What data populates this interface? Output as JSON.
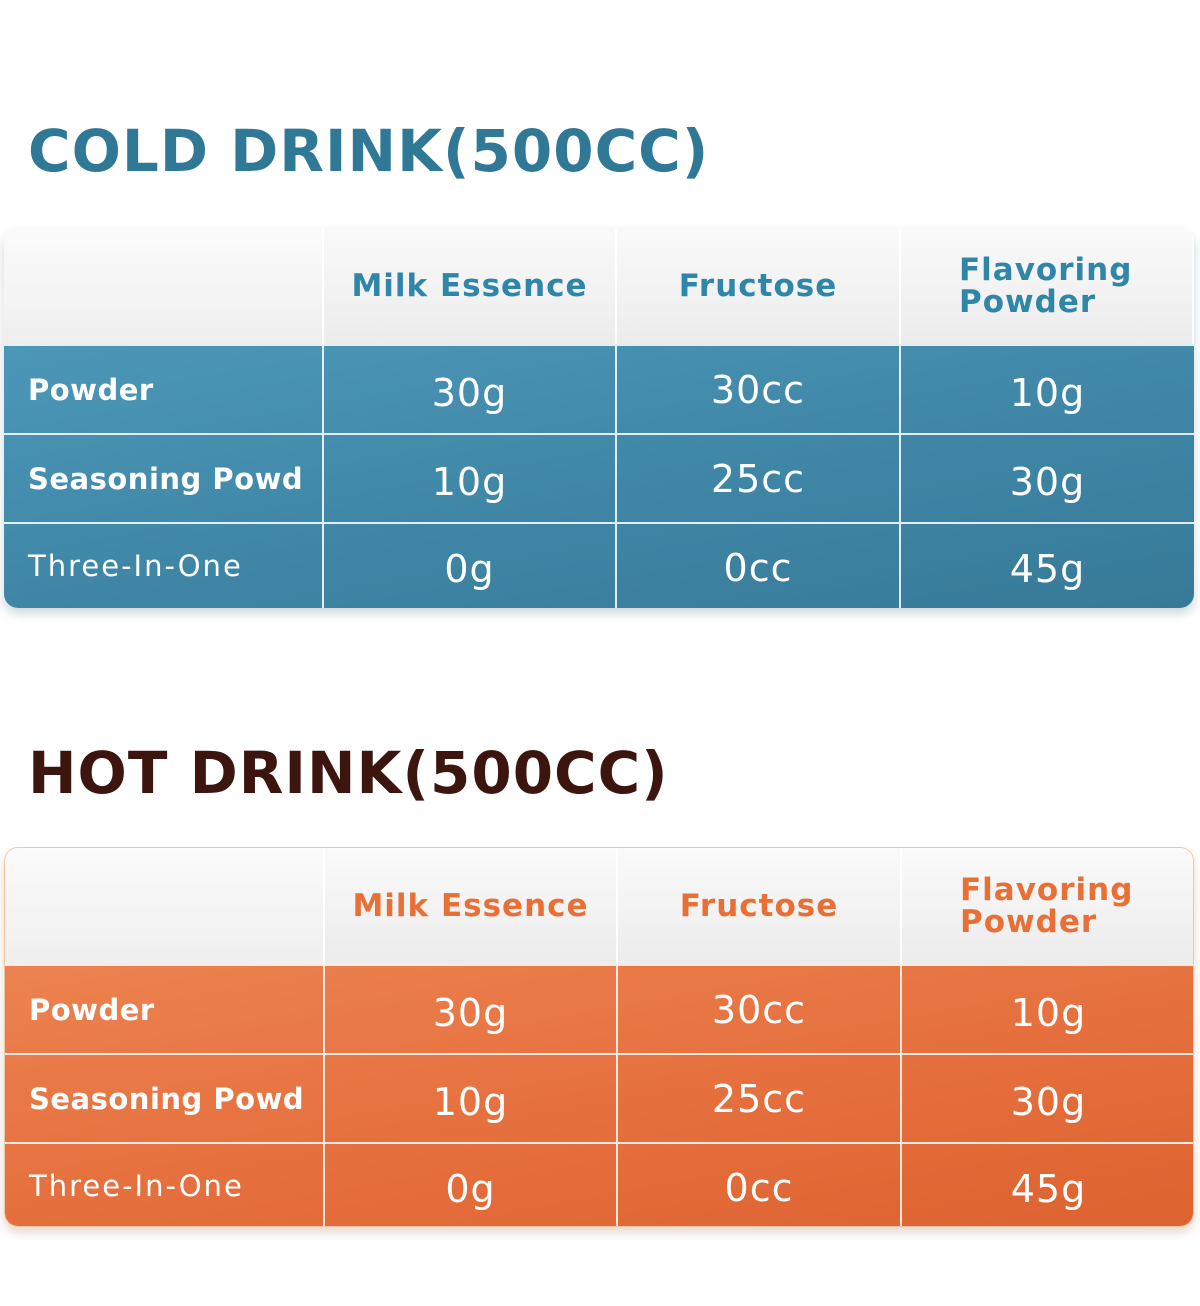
{
  "cold": {
    "title": "COLD DRINK(500CC)",
    "headers": [
      "",
      "Milk Essence",
      "Fructose",
      "Flavoring Powder"
    ],
    "rows": [
      {
        "label": "Powder",
        "values": [
          "30g",
          "30cc",
          "10g"
        ]
      },
      {
        "label": "Seasoning Powd",
        "values": [
          "10g",
          "25cc",
          "30g"
        ]
      },
      {
        "label": "Three-In-One",
        "values": [
          "0g",
          "0cc",
          "45g"
        ]
      }
    ],
    "accent_color": "#2f86a8",
    "body_color": "#4190b0"
  },
  "hot": {
    "title": "HOT DRINK(500CC)",
    "headers": [
      "",
      "Milk Essence",
      "Fructose",
      "Flavoring Powder"
    ],
    "rows": [
      {
        "label": "Powder",
        "values": [
          "30g",
          "30cc",
          "10g"
        ]
      },
      {
        "label": "Seasoning Powd",
        "values": [
          "10g",
          "25cc",
          "30g"
        ]
      },
      {
        "label": "Three-In-One",
        "values": [
          "0g",
          "0cc",
          "45g"
        ]
      }
    ],
    "title_color": "#3c160e",
    "accent_color": "#e86f36",
    "body_color": "#e5713f"
  }
}
